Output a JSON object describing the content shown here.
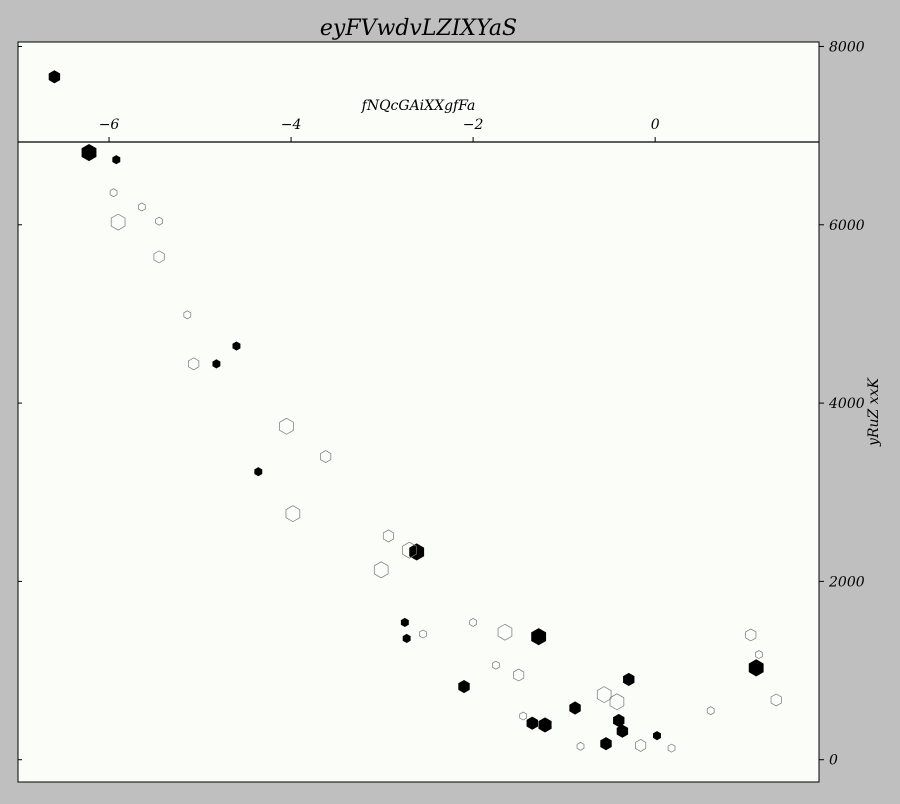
{
  "chart_data": {
    "type": "scatter",
    "title": "eyFVwdvLZIXYaS",
    "xlabel": "fNQcGAiXXgfFa",
    "ylabel": "yRuZ xxK",
    "x_axis_position": "top",
    "y_axis_position": "right",
    "xlim": [
      -7.0,
      1.8
    ],
    "ylim": [
      -250,
      8050
    ],
    "x_ticks": [
      -6,
      -4,
      -2,
      0
    ],
    "x_tick_labels": [
      "−6",
      "−4",
      "−2",
      "0"
    ],
    "y_ticks": [
      0,
      2000,
      4000,
      6000,
      8000
    ],
    "y_tick_labels": [
      "0",
      "2000",
      "4000",
      "6000",
      "8000"
    ],
    "grid": false,
    "colors": {
      "plot_bg": "#fbfdf9",
      "figure_bg": "#bfbfbf",
      "filled": "#000000",
      "hollow": "#777777"
    },
    "series": [
      {
        "style": "filled",
        "points": [
          {
            "x": -6.6,
            "y": 7660,
            "s": 6
          },
          {
            "x": -6.22,
            "y": 6810,
            "s": 8
          },
          {
            "x": -5.92,
            "y": 6730,
            "s": 4
          },
          {
            "x": -4.6,
            "y": 4640,
            "s": 4
          },
          {
            "x": -4.82,
            "y": 4440,
            "s": 4
          },
          {
            "x": -4.36,
            "y": 3230,
            "s": 4
          },
          {
            "x": -2.62,
            "y": 2330,
            "s": 8
          },
          {
            "x": -2.75,
            "y": 1540,
            "s": 4
          },
          {
            "x": -2.73,
            "y": 1360,
            "s": 4
          },
          {
            "x": -2.1,
            "y": 820,
            "s": 6
          },
          {
            "x": -1.28,
            "y": 1380,
            "s": 8
          },
          {
            "x": -1.35,
            "y": 410,
            "s": 6
          },
          {
            "x": -1.21,
            "y": 390,
            "s": 7
          },
          {
            "x": -0.88,
            "y": 580,
            "s": 6
          },
          {
            "x": -0.54,
            "y": 180,
            "s": 6
          },
          {
            "x": -0.4,
            "y": 440,
            "s": 6
          },
          {
            "x": -0.36,
            "y": 320,
            "s": 6
          },
          {
            "x": -0.29,
            "y": 900,
            "s": 6
          },
          {
            "x": 0.02,
            "y": 270,
            "s": 4
          },
          {
            "x": 1.11,
            "y": 1030,
            "s": 8
          }
        ]
      },
      {
        "style": "hollow",
        "points": [
          {
            "x": -5.95,
            "y": 6360,
            "s": 4
          },
          {
            "x": -5.9,
            "y": 6030,
            "s": 8
          },
          {
            "x": -5.64,
            "y": 6200,
            "s": 4
          },
          {
            "x": -5.45,
            "y": 6040,
            "s": 4
          },
          {
            "x": -5.45,
            "y": 5640,
            "s": 6
          },
          {
            "x": -5.14,
            "y": 4990,
            "s": 4
          },
          {
            "x": -5.07,
            "y": 4440,
            "s": 6
          },
          {
            "x": -4.05,
            "y": 3740,
            "s": 8
          },
          {
            "x": -3.62,
            "y": 3400,
            "s": 6
          },
          {
            "x": -3.98,
            "y": 2760,
            "s": 8
          },
          {
            "x": -2.93,
            "y": 2510,
            "s": 6
          },
          {
            "x": -3.01,
            "y": 2130,
            "s": 8
          },
          {
            "x": -2.7,
            "y": 2350,
            "s": 8
          },
          {
            "x": -2.55,
            "y": 1410,
            "s": 4
          },
          {
            "x": -2.0,
            "y": 1540,
            "s": 4
          },
          {
            "x": -1.65,
            "y": 1430,
            "s": 8
          },
          {
            "x": -1.75,
            "y": 1060,
            "s": 4
          },
          {
            "x": -1.5,
            "y": 950,
            "s": 6
          },
          {
            "x": -1.45,
            "y": 490,
            "s": 4
          },
          {
            "x": -0.56,
            "y": 730,
            "s": 8
          },
          {
            "x": -0.42,
            "y": 650,
            "s": 8
          },
          {
            "x": -0.82,
            "y": 150,
            "s": 4
          },
          {
            "x": -0.16,
            "y": 160,
            "s": 6
          },
          {
            "x": 0.18,
            "y": 130,
            "s": 4
          },
          {
            "x": 0.61,
            "y": 550,
            "s": 4
          },
          {
            "x": 1.05,
            "y": 1400,
            "s": 6
          },
          {
            "x": 1.14,
            "y": 1180,
            "s": 4
          },
          {
            "x": 1.33,
            "y": 670,
            "s": 6
          }
        ]
      }
    ]
  }
}
